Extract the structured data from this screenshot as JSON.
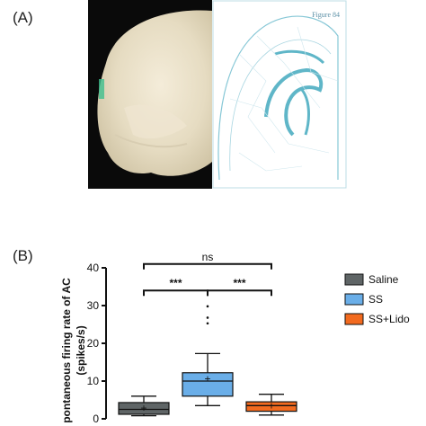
{
  "panel_labels": {
    "a": "(A)",
    "b": "(B)"
  },
  "figure_a": {
    "atlas_tag": "Figure 84",
    "description_icons": [
      "brain-slice-photo",
      "brain-atlas-diagram"
    ]
  },
  "colors": {
    "saline": "#5f6566",
    "ss": "#6aaee8",
    "ss_lido": "#f26a1f",
    "atlas_line": "#5fb6c8"
  },
  "chart_data": {
    "type": "box",
    "ylabel_line1": "pontaneous firing rate of AC",
    "ylabel_line2": "(spikes/s)",
    "ylim": [
      0,
      40
    ],
    "yticks": [
      "0",
      "10",
      "20",
      "30",
      "40"
    ],
    "grid": false,
    "legend_position": "right",
    "series": [
      {
        "name": "Saline",
        "whisker_low": 0.8,
        "q1": 1.2,
        "median": 2.5,
        "mean": 2.8,
        "q3": 4.3,
        "whisker_high": 6.0,
        "outliers": []
      },
      {
        "name": "SS",
        "whisker_low": 3.5,
        "q1": 6.0,
        "median": 10.0,
        "mean": 10.6,
        "q3": 12.2,
        "whisker_high": 17.3,
        "outliers": [
          29.8,
          26.8,
          25.3
        ]
      },
      {
        "name": "SS+Lido",
        "whisker_low": 1.0,
        "q1": 2.0,
        "median": 3.5,
        "mean": 3.4,
        "q3": 4.5,
        "whisker_high": 6.5,
        "outliers": []
      }
    ],
    "comparisons": [
      {
        "from": 0,
        "to": 1,
        "label": "***",
        "y": 34
      },
      {
        "from": 1,
        "to": 2,
        "label": "***",
        "y": 34
      },
      {
        "from": 0,
        "to": 2,
        "label": "ns",
        "y": 41
      }
    ]
  }
}
